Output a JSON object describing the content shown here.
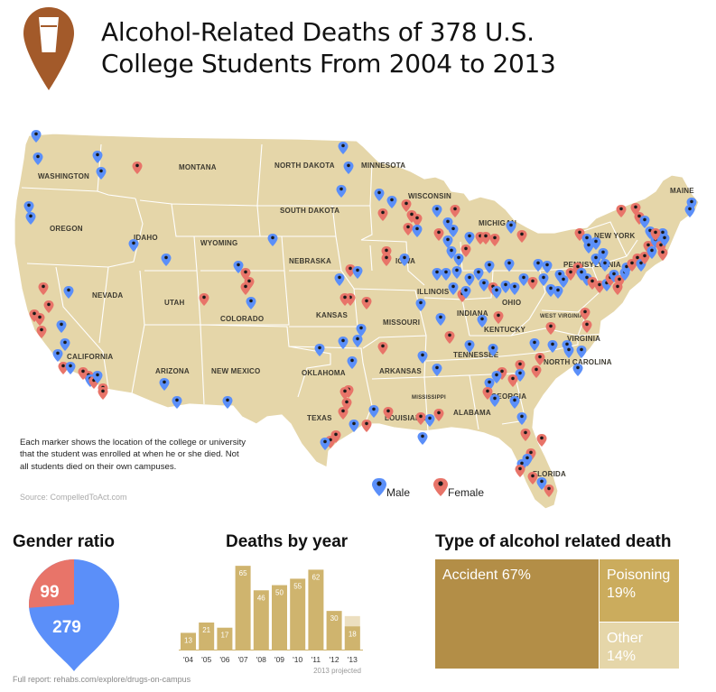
{
  "header": {
    "title_line1": "Alcohol-Related Deaths of 378 U.S.",
    "title_line2": "College Students From 2004 to 2013",
    "icon": "beer-glass-pin-icon"
  },
  "colors": {
    "land": "#e5d6a9",
    "border": "#ffffff",
    "male": "#5b8ff9",
    "female": "#e87469",
    "bar": "#cfb46e",
    "bar_projected": "#ecdfc0",
    "accident": "#b38e47",
    "poisoning": "#cbac5d",
    "other": "#e5d6a9",
    "pin_brown": "#a35a2a"
  },
  "map": {
    "state_labels": [
      "WASHINGTON",
      "MONTANA",
      "NORTH DAKOTA",
      "MINNESOTA",
      "MAINE",
      "OREGON",
      "IDAHO",
      "SOUTH DAKOTA",
      "WISCONSIN",
      "NEW YORK",
      "WYOMING",
      "MICHIGAN",
      "NEBRASKA",
      "IOWA",
      "PENNSYLVANIA",
      "NEVADA",
      "UTAH",
      "COLORADO",
      "ILLINOIS",
      "INDIANA",
      "OHIO",
      "KANSAS",
      "MISSOURI",
      "WEST VIRGINIA",
      "VIRGINIA",
      "KENTUCKY",
      "CALIFORNIA",
      "OKLAHOMA",
      "TENNESSEE",
      "NORTH CAROLINA",
      "ARIZONA",
      "NEW MEXICO",
      "ARKANSAS",
      "MISSISSIPPI",
      "ALABAMA",
      "GEORGIA",
      "TEXAS",
      "LOUISIANA",
      "FLORIDA"
    ],
    "note": "Each marker shows the location of the college or university that the student was enrolled at when he or she died. Not all students died on their own campuses.",
    "source": "Source: CompelledToAct.com",
    "legend": [
      {
        "label": "Male",
        "color": "#5b8ff9"
      },
      {
        "label": "Female",
        "color": "#e87469"
      }
    ]
  },
  "chart_data": [
    {
      "type": "pie",
      "title": "Gender ratio",
      "categories": [
        "Female",
        "Male"
      ],
      "values": [
        99,
        279
      ],
      "colors": [
        "#e87469",
        "#5b8ff9"
      ]
    },
    {
      "type": "bar",
      "title": "Deaths by year",
      "categories": [
        "'04",
        "'05",
        "'06",
        "'07",
        "'08",
        "'09",
        "'10",
        "'11",
        "'12",
        "'13"
      ],
      "values": [
        13,
        21,
        17,
        65,
        46,
        50,
        55,
        62,
        30,
        18
      ],
      "ylim": [
        0,
        70
      ],
      "annotation": "2013 projected"
    },
    {
      "type": "treemap",
      "title": "Type of alcohol related death",
      "categories": [
        "Accident",
        "Poisoning",
        "Other"
      ],
      "values": [
        67,
        19,
        14
      ],
      "labels": [
        "Accident 67%",
        "Poisoning 19%",
        "Other 14%"
      ]
    }
  ],
  "footer": "Full report: rehabs.com/explore/drugs-on-campus"
}
